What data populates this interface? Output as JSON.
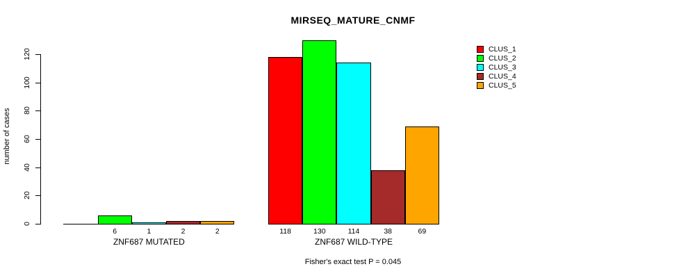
{
  "chart_data": {
    "type": "bar",
    "title": "MIRSEQ_MATURE_CNMF",
    "ylabel": "number of cases",
    "xlabel": "",
    "ylim": [
      0,
      130
    ],
    "yticks": [
      0,
      20,
      40,
      60,
      80,
      100,
      120
    ],
    "grid": false,
    "legend_position": "top-right",
    "series": [
      {
        "name": "CLUS_1",
        "color": "#FF0000"
      },
      {
        "name": "CLUS_2",
        "color": "#00FF00"
      },
      {
        "name": "CLUS_3",
        "color": "#00FFFF"
      },
      {
        "name": "CLUS_4",
        "color": "#A52A2A"
      },
      {
        "name": "CLUS_5",
        "color": "#FFA500"
      }
    ],
    "categories": [
      "ZNF687 MUTATED",
      "ZNF687 WILD-TYPE"
    ],
    "groups": [
      {
        "label": "ZNF687 MUTATED",
        "values": [
          0,
          6,
          1,
          2,
          2
        ],
        "value_labels": [
          "",
          "6",
          "1",
          "2",
          "2"
        ]
      },
      {
        "label": "ZNF687 WILD-TYPE",
        "values": [
          118,
          130,
          114,
          38,
          69
        ],
        "value_labels": [
          "118",
          "130",
          "114",
          "38",
          "69"
        ]
      }
    ],
    "annotation": "Fisher's exact test P = 0.045"
  }
}
